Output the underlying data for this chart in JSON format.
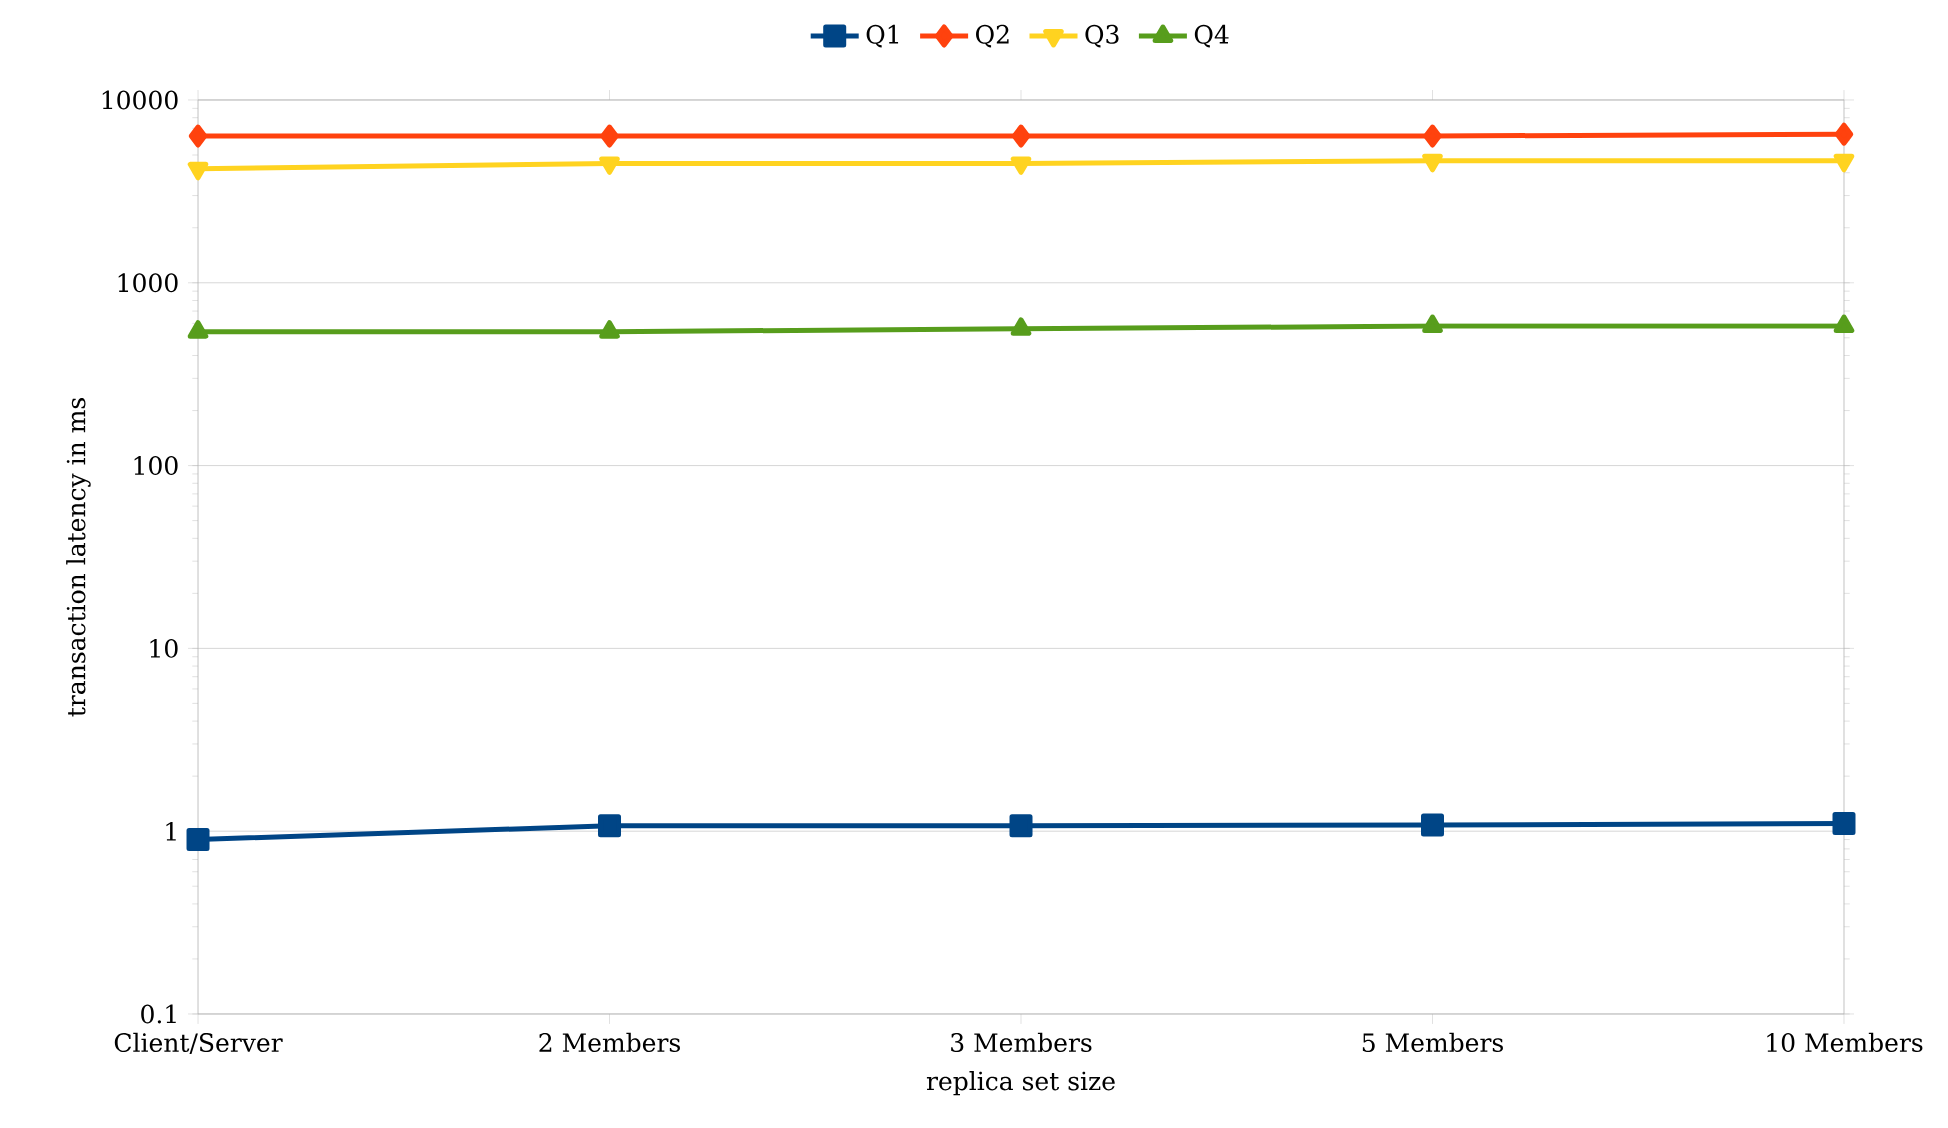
{
  "chart_data": {
    "type": "line",
    "xlabel": "replica set size",
    "ylabel": "transaction latency in ms",
    "categories": [
      "Client/Server",
      "2 Members",
      "3 Members",
      "5 Members",
      "10 Members"
    ],
    "series": [
      {
        "name": "Q1",
        "color": "#004586",
        "marker": "square",
        "values": [
          0.9,
          1.07,
          1.07,
          1.08,
          1.1
        ]
      },
      {
        "name": "Q2",
        "color": "#ff420e",
        "marker": "diamond",
        "values": [
          6350,
          6350,
          6350,
          6350,
          6500
        ]
      },
      {
        "name": "Q3",
        "color": "#ffd320",
        "marker": "triangle-down",
        "values": [
          4200,
          4500,
          4500,
          4650,
          4650
        ]
      },
      {
        "name": "Q4",
        "color": "#579d1c",
        "marker": "triangle",
        "values": [
          540,
          540,
          560,
          580,
          580
        ]
      }
    ],
    "log": "y",
    "ylim": [
      0.1,
      10000
    ],
    "yticks": [
      0.1,
      1,
      10,
      100,
      1000,
      10000
    ],
    "grid": "y",
    "legend": "top",
    "line_style": "solid"
  }
}
